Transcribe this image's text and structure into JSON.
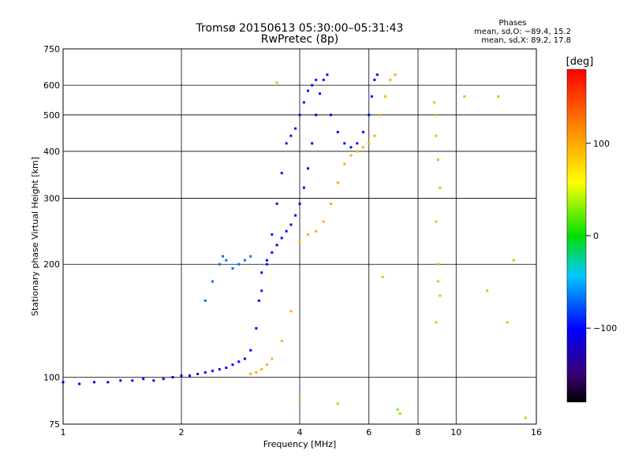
{
  "chart_data": {
    "type": "scatter",
    "title": "Tromsø 20150613 05:30:00–05:31:43",
    "subtitle": "RwPretec (8p)",
    "xlabel": "Frequency [MHz]",
    "ylabel": "Stationary phase Virtual Height [km]",
    "x_scale": "log",
    "y_scale": "log",
    "xlim": [
      1,
      16
    ],
    "ylim": [
      75,
      750
    ],
    "x_ticks": [
      "1",
      "2",
      "4",
      "6",
      "8",
      "10",
      "16"
    ],
    "y_ticks": [
      "75",
      "100",
      "200",
      "300",
      "400",
      "500",
      "600",
      "750"
    ],
    "grid": true,
    "colorbar": {
      "label": "[deg]",
      "ticks": [
        "100",
        "0",
        "−100"
      ],
      "tick_values": [
        100,
        0,
        -100
      ],
      "range": [
        -180,
        180
      ]
    },
    "phase_stats": {
      "heading": "Phases",
      "line_o": "mean, sd,O: −89.4, 15.2",
      "line_x": "mean, sd,X:  89.2, 17.8"
    },
    "series": [
      {
        "trace": "O-mode (blue)",
        "phase": -100,
        "points": [
          [
            1.0,
            97
          ],
          [
            1.1,
            96
          ],
          [
            1.2,
            97
          ],
          [
            1.3,
            97
          ],
          [
            1.4,
            98
          ],
          [
            1.5,
            98
          ],
          [
            1.6,
            99
          ],
          [
            1.7,
            98
          ],
          [
            1.8,
            99
          ],
          [
            1.9,
            100
          ],
          [
            2.0,
            101
          ],
          [
            2.1,
            101
          ],
          [
            2.2,
            102
          ],
          [
            2.3,
            103
          ],
          [
            2.4,
            104
          ],
          [
            2.5,
            105
          ],
          [
            2.6,
            106
          ],
          [
            2.7,
            108
          ],
          [
            2.8,
            110
          ],
          [
            2.9,
            112
          ],
          [
            3.0,
            118
          ],
          [
            3.1,
            135
          ],
          [
            3.15,
            160
          ],
          [
            3.2,
            190
          ],
          [
            3.3,
            205
          ],
          [
            3.4,
            215
          ],
          [
            3.5,
            225
          ],
          [
            3.6,
            235
          ],
          [
            3.7,
            245
          ],
          [
            3.8,
            255
          ],
          [
            3.9,
            270
          ],
          [
            4.0,
            290
          ],
          [
            4.1,
            320
          ],
          [
            4.2,
            360
          ],
          [
            4.3,
            420
          ],
          [
            4.4,
            500
          ],
          [
            4.5,
            570
          ],
          [
            4.6,
            620
          ],
          [
            4.7,
            640
          ],
          [
            4.8,
            500
          ],
          [
            5.0,
            450
          ],
          [
            5.2,
            420
          ],
          [
            5.4,
            410
          ],
          [
            5.6,
            420
          ],
          [
            5.8,
            450
          ],
          [
            6.0,
            500
          ],
          [
            6.1,
            560
          ],
          [
            6.2,
            620
          ],
          [
            6.3,
            640
          ]
        ]
      },
      {
        "trace": "O-mode secondary (blue)",
        "phase": -95,
        "points": [
          [
            3.2,
            170
          ],
          [
            3.3,
            200
          ],
          [
            3.4,
            240
          ],
          [
            3.5,
            290
          ],
          [
            3.6,
            350
          ],
          [
            3.7,
            420
          ],
          [
            3.8,
            440
          ],
          [
            3.9,
            460
          ],
          [
            4.0,
            500
          ],
          [
            4.1,
            540
          ],
          [
            4.2,
            580
          ],
          [
            4.3,
            600
          ],
          [
            4.4,
            620
          ]
        ]
      },
      {
        "trace": "low-frequency spur (cyan)",
        "phase": -70,
        "points": [
          [
            2.3,
            160
          ],
          [
            2.4,
            180
          ],
          [
            2.5,
            200
          ],
          [
            2.55,
            210
          ],
          [
            2.6,
            205
          ],
          [
            2.7,
            195
          ],
          [
            2.8,
            200
          ],
          [
            2.9,
            205
          ],
          [
            3.0,
            210
          ]
        ]
      },
      {
        "trace": "X-mode (yellow)",
        "phase": 100,
        "points": [
          [
            3.0,
            102
          ],
          [
            3.1,
            103
          ],
          [
            3.2,
            105
          ],
          [
            3.3,
            108
          ],
          [
            3.4,
            112
          ],
          [
            3.6,
            125
          ],
          [
            3.8,
            150
          ],
          [
            4.0,
            230
          ],
          [
            4.2,
            240
          ],
          [
            4.4,
            245
          ],
          [
            4.6,
            260
          ],
          [
            4.8,
            290
          ],
          [
            5.0,
            330
          ],
          [
            5.2,
            370
          ],
          [
            5.4,
            390
          ],
          [
            5.6,
            400
          ],
          [
            5.8,
            410
          ],
          [
            6.0,
            420
          ],
          [
            6.2,
            440
          ],
          [
            6.4,
            500
          ],
          [
            6.6,
            560
          ],
          [
            6.8,
            620
          ],
          [
            7.0,
            640
          ]
        ]
      },
      {
        "trace": "scattered echoes",
        "phase": 30,
        "points": [
          [
            3.5,
            610
          ],
          [
            8.8,
            540
          ],
          [
            8.9,
            500
          ],
          [
            8.9,
            440
          ],
          [
            9.0,
            380
          ],
          [
            9.1,
            320
          ],
          [
            8.9,
            260
          ],
          [
            9.0,
            200
          ],
          [
            9.0,
            180
          ],
          [
            9.1,
            165
          ],
          [
            8.9,
            140
          ],
          [
            10.5,
            560
          ],
          [
            12.8,
            560
          ],
          [
            12.0,
            170
          ],
          [
            13.5,
            140
          ],
          [
            14.0,
            205
          ],
          [
            15.0,
            78
          ],
          [
            7.1,
            82
          ],
          [
            7.2,
            80
          ],
          [
            6.5,
            185
          ],
          [
            5.0,
            85
          ],
          [
            4.0,
            87
          ]
        ]
      }
    ]
  }
}
